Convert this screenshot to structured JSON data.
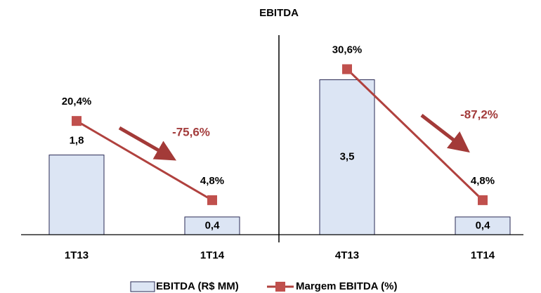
{
  "chart_data": {
    "type": "bar_line",
    "title": "EBITDA",
    "categories": [
      "1T13",
      "1T14",
      "4T13",
      "1T14"
    ],
    "series": [
      {
        "name": "EBITDA (R$ MM)",
        "type": "bar",
        "color": "#dce5f4",
        "values": [
          1.8,
          0.4,
          3.5,
          0.4
        ],
        "value_labels": [
          "1,8",
          "0,4",
          "3,5",
          "0,4"
        ]
      },
      {
        "name": "Margem EBITDA (%)",
        "type": "line",
        "axis": "y2",
        "color": "#b0413e",
        "values": [
          20.4,
          4.8,
          30.6,
          4.8
        ],
        "value_labels": [
          "20,4%",
          "4,8%",
          "30,6%",
          "4,8%"
        ]
      }
    ],
    "ylim": [
      0,
      5
    ],
    "y2lim": [
      -2,
      41.6
    ],
    "annotations": [
      "-75,6%",
      "-87,2%"
    ]
  }
}
